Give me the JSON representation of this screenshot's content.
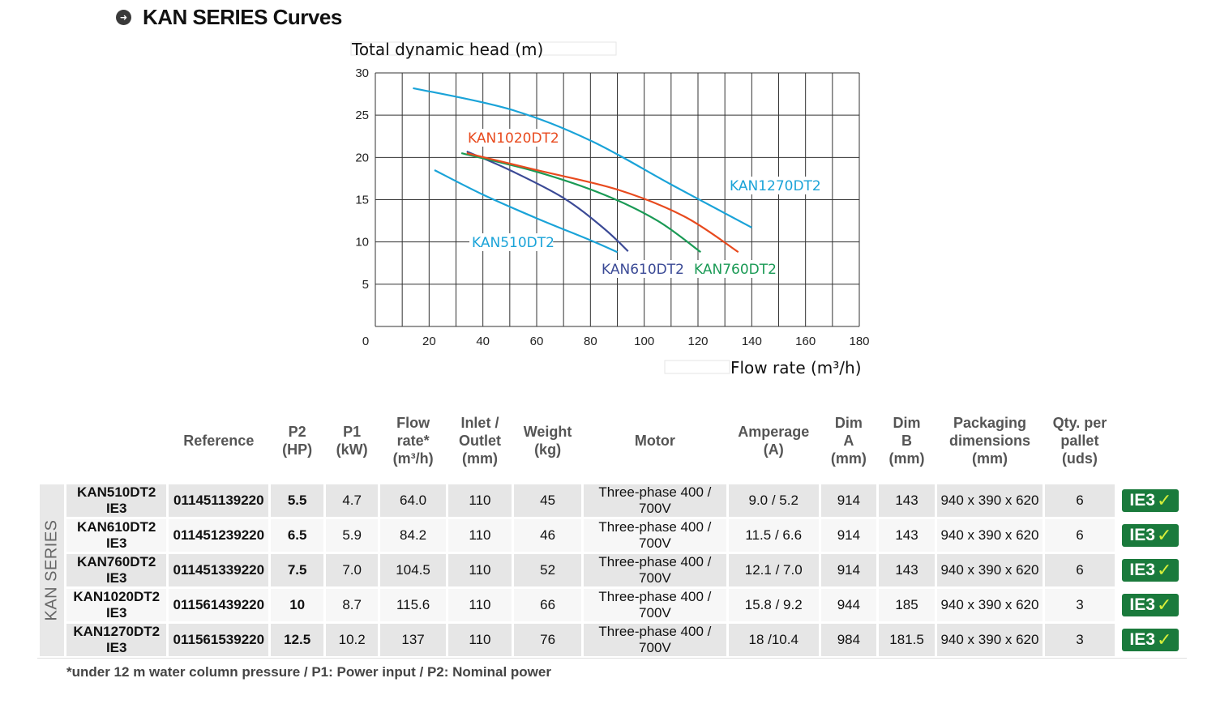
{
  "header": {
    "title": "KAN SERIES Curves",
    "bullet_icon": "arrow-circle-icon"
  },
  "chart_data": {
    "type": "line",
    "ylabel": "Total dynamic head (m)",
    "xlabel": "Flow rate (m³/h)",
    "xlim": [
      0,
      180
    ],
    "ylim": [
      0,
      30
    ],
    "xticks": [
      "0",
      "20",
      "40",
      "60",
      "80",
      "100",
      "120",
      "140",
      "160",
      "180"
    ],
    "yticks": [
      "5",
      "10",
      "15",
      "20",
      "25",
      "30"
    ],
    "grid": true,
    "series": [
      {
        "name": "KAN510DT2",
        "color": "#1aa3d8",
        "x": [
          22,
          40,
          60,
          80,
          90
        ],
        "y": [
          18.5,
          15.6,
          12.8,
          10.2,
          8.8
        ]
      },
      {
        "name": "KAN610DT2",
        "color": "#3b4a96",
        "x": [
          34,
          50,
          70,
          85,
          94
        ],
        "y": [
          20.7,
          18.5,
          15.2,
          11.6,
          8.9
        ]
      },
      {
        "name": "KAN760DT2",
        "color": "#1a9a55",
        "x": [
          32,
          60,
          85,
          105,
          121
        ],
        "y": [
          20.5,
          18.3,
          15.6,
          12.5,
          8.8
        ]
      },
      {
        "name": "KAN1020DT2",
        "color": "#e84a1e",
        "x": [
          34,
          60,
          90,
          115,
          135
        ],
        "y": [
          20.5,
          18.5,
          16.2,
          13.0,
          8.8
        ]
      },
      {
        "name": "KAN1270DT2",
        "color": "#1aa3d8",
        "x": [
          14,
          50,
          80,
          110,
          140
        ],
        "y": [
          28.2,
          25.7,
          22.0,
          16.8,
          11.7
        ]
      }
    ]
  },
  "table": {
    "side_label": "KAN SERIES",
    "headers": {
      "reference": "Reference",
      "p2": "P2\n(HP)",
      "p1": "P1\n(kW)",
      "flow": "Flow\nrate*\n(m³/h)",
      "inlet": "Inlet /\nOutlet\n(mm)",
      "weight": "Weight\n(kg)",
      "motor": "Motor",
      "amperage": "Amperage\n(A)",
      "dim_a": "Dim\nA\n(mm)",
      "dim_b": "Dim\nB\n(mm)",
      "packaging": "Packaging\ndimensions\n(mm)",
      "qty": "Qty. per\npallet\n(uds)"
    },
    "rows": [
      {
        "model": "KAN510DT2 IE3",
        "reference": "011451139220",
        "p2": "5.5",
        "p1": "4.7",
        "flow": "64.0",
        "inlet": "110",
        "weight": "45",
        "motor": "Three-phase 400 / 700V",
        "amperage": "9.0 / 5.2",
        "dim_a": "914",
        "dim_b": "143",
        "packaging": "940 x 390 x 620",
        "qty": "6",
        "badge": "IE3"
      },
      {
        "model": "KAN610DT2 IE3",
        "reference": "011451239220",
        "p2": "6.5",
        "p1": "5.9",
        "flow": "84.2",
        "inlet": "110",
        "weight": "46",
        "motor": "Three-phase 400 / 700V",
        "amperage": "11.5 / 6.6",
        "dim_a": "914",
        "dim_b": "143",
        "packaging": "940 x 390 x 620",
        "qty": "6",
        "badge": "IE3"
      },
      {
        "model": "KAN760DT2 IE3",
        "reference": "011451339220",
        "p2": "7.5",
        "p1": "7.0",
        "flow": "104.5",
        "inlet": "110",
        "weight": "52",
        "motor": "Three-phase 400 / 700V",
        "amperage": "12.1 / 7.0",
        "dim_a": "914",
        "dim_b": "143",
        "packaging": "940 x 390 x 620",
        "qty": "6",
        "badge": "IE3"
      },
      {
        "model": "KAN1020DT2 IE3",
        "reference": "011561439220",
        "p2": "10",
        "p1": "8.7",
        "flow": "115.6",
        "inlet": "110",
        "weight": "66",
        "motor": "Three-phase 400 / 700V",
        "amperage": "15.8 / 9.2",
        "dim_a": "944",
        "dim_b": "185",
        "packaging": "940 x 390 x 620",
        "qty": "3",
        "badge": "IE3"
      },
      {
        "model": "KAN1270DT2 IE3",
        "reference": "011561539220",
        "p2": "12.5",
        "p1": "10.2",
        "flow": "137",
        "inlet": "110",
        "weight": "76",
        "motor": "Three-phase 400 / 700V",
        "amperage": "18 /10.4",
        "dim_a": "984",
        "dim_b": "181.5",
        "packaging": "940 x 390 x 620",
        "qty": "3",
        "badge": "IE3"
      }
    ],
    "badge_icon": "checkmark-icon"
  },
  "footnote": "*under 12 m water column pressure / P1: Power input / P2: Nominal power"
}
